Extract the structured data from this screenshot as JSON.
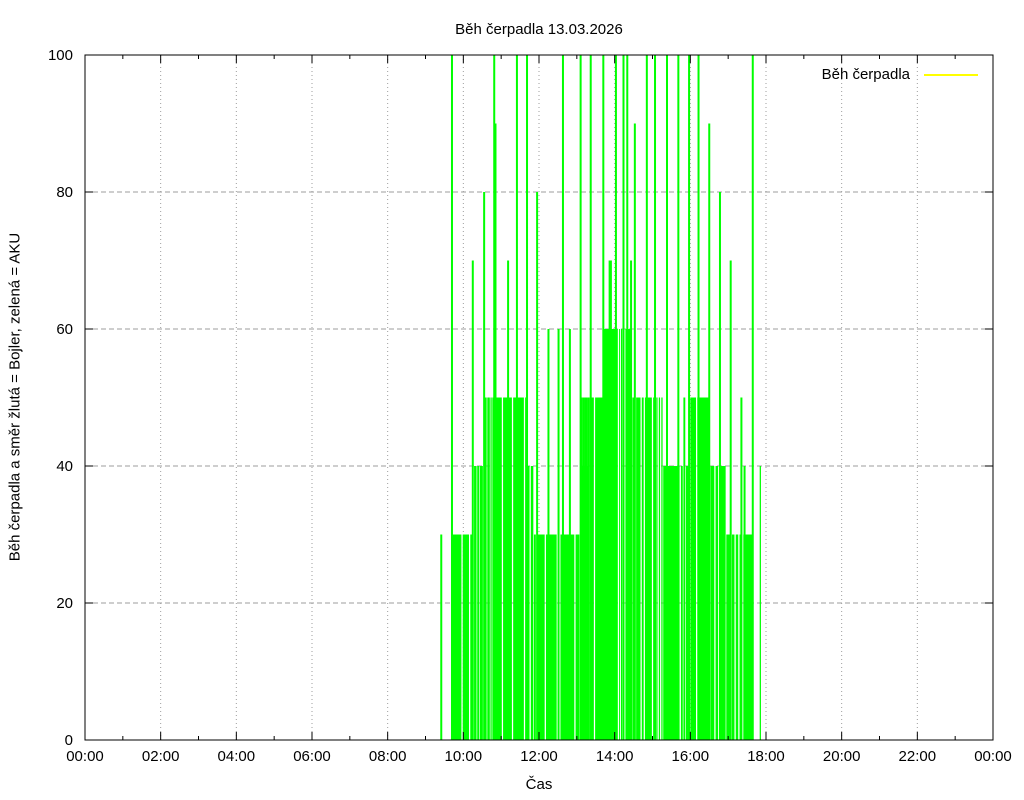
{
  "chart_data": {
    "type": "bar",
    "style": "impulses",
    "title": "Běh čerpadla 13.03.2026",
    "xlabel": "Čas",
    "ylabel": "Běh čerpadla a směr žlutá = Bojler, zelená = AKU",
    "ylim": [
      0,
      100
    ],
    "x_range_hours": 24,
    "x_ticks": [
      "00:00",
      "02:00",
      "04:00",
      "06:00",
      "08:00",
      "10:00",
      "12:00",
      "14:00",
      "16:00",
      "18:00",
      "20:00",
      "22:00",
      "00:00"
    ],
    "y_ticks": [
      0,
      20,
      40,
      60,
      80,
      100
    ],
    "grid": true,
    "colors": {
      "bars": "#00ff00",
      "legend_line": "#ffff00",
      "grid": "#9e9e9e",
      "axis": "#000000",
      "background": "#ffffff"
    },
    "legend": [
      {
        "label": "Běh čerpadla",
        "color": "#ffff00"
      }
    ],
    "series": [
      {
        "name": "Běh čerpadla",
        "color": "#00ff00",
        "segments": [
          {
            "s": "09:41",
            "e": "09:57",
            "v": 30
          },
          {
            "s": "09:59",
            "e": "10:09",
            "v": 30
          },
          {
            "s": "10:11",
            "e": "10:14",
            "v": 30
          },
          {
            "s": "10:17",
            "e": "10:21",
            "v": 40
          },
          {
            "s": "10:22",
            "e": "10:25",
            "v": 40
          },
          {
            "s": "10:26",
            "e": "10:31",
            "v": 40
          },
          {
            "s": "10:32",
            "e": "10:37",
            "v": 50
          },
          {
            "s": "10:38",
            "e": "10:42",
            "v": 50
          },
          {
            "s": "10:43",
            "e": "10:45",
            "v": 50
          },
          {
            "s": "10:46",
            "e": "11:01",
            "v": 50
          },
          {
            "s": "11:03",
            "e": "11:17",
            "v": 50
          },
          {
            "s": "11:19",
            "e": "11:36",
            "v": 50
          },
          {
            "s": "11:38",
            "e": "11:39",
            "v": 50
          },
          {
            "s": "11:40",
            "e": "11:45",
            "v": 40
          },
          {
            "s": "11:47",
            "e": "11:51",
            "v": 40
          },
          {
            "s": "11:52",
            "e": "11:55",
            "v": 30
          },
          {
            "s": "11:57",
            "e": "12:09",
            "v": 30
          },
          {
            "s": "12:11",
            "e": "12:28",
            "v": 30
          },
          {
            "s": "12:34",
            "e": "12:48",
            "v": 30
          },
          {
            "s": "12:50",
            "e": "12:56",
            "v": 30
          },
          {
            "s": "12:58",
            "e": "13:04",
            "v": 30
          },
          {
            "s": "13:05",
            "e": "13:20",
            "v": 40
          },
          {
            "s": "13:21",
            "e": "13:27",
            "v": 50
          },
          {
            "s": "13:29",
            "e": "13:42",
            "v": 50
          },
          {
            "s": "13:43",
            "e": "14:05",
            "v": 60
          },
          {
            "s": "14:07",
            "e": "14:08",
            "v": 60
          },
          {
            "s": "14:10",
            "e": "14:12",
            "v": 60
          },
          {
            "s": "14:14",
            "e": "14:15",
            "v": 60
          },
          {
            "s": "14:17",
            "e": "14:26",
            "v": 60
          },
          {
            "s": "14:28",
            "e": "14:32",
            "v": 50
          },
          {
            "s": "14:34",
            "e": "14:41",
            "v": 50
          },
          {
            "s": "14:43",
            "e": "14:46",
            "v": 50
          },
          {
            "s": "14:48",
            "e": "14:59",
            "v": 50
          },
          {
            "s": "15:01",
            "e": "15:04",
            "v": 50
          },
          {
            "s": "15:06",
            "e": "15:08",
            "v": 50
          },
          {
            "s": "15:10",
            "e": "15:12",
            "v": 50
          },
          {
            "s": "15:14",
            "e": "15:16",
            "v": 50
          },
          {
            "s": "15:17",
            "e": "15:43",
            "v": 40
          },
          {
            "s": "15:45",
            "e": "15:48",
            "v": 40
          },
          {
            "s": "15:49",
            "e": "15:52",
            "v": 50
          },
          {
            "s": "15:53",
            "e": "15:59",
            "v": 40
          },
          {
            "s": "16:00",
            "e": "16:09",
            "v": 50
          },
          {
            "s": "16:11",
            "e": "16:31",
            "v": 50
          },
          {
            "s": "16:32",
            "e": "16:38",
            "v": 40
          },
          {
            "s": "16:40",
            "e": "16:44",
            "v": 40
          },
          {
            "s": "16:46",
            "e": "16:56",
            "v": 40
          },
          {
            "s": "16:57",
            "e": "17:04",
            "v": 30
          },
          {
            "s": "17:06",
            "e": "17:10",
            "v": 30
          },
          {
            "s": "17:12",
            "e": "17:16",
            "v": 30
          },
          {
            "s": "17:18",
            "e": "17:22",
            "v": 30
          },
          {
            "s": "17:24",
            "e": "17:39",
            "v": 30
          },
          {
            "s": "17:50",
            "e": "17:52",
            "v": 40
          }
        ],
        "spikes": [
          {
            "t": "09:25",
            "v": 30
          },
          {
            "t": "09:42",
            "v": 100
          },
          {
            "t": "10:15",
            "v": 70
          },
          {
            "t": "10:33",
            "v": 80
          },
          {
            "t": "10:49",
            "v": 100
          },
          {
            "t": "10:51",
            "v": 90
          },
          {
            "t": "11:11",
            "v": 70
          },
          {
            "t": "11:25",
            "v": 100
          },
          {
            "t": "11:41",
            "v": 100
          },
          {
            "t": "11:57",
            "v": 80
          },
          {
            "t": "12:15",
            "v": 60
          },
          {
            "t": "12:31",
            "v": 60
          },
          {
            "t": "12:38",
            "v": 100
          },
          {
            "t": "12:49",
            "v": 60
          },
          {
            "t": "13:06",
            "v": 100
          },
          {
            "t": "13:07",
            "v": 50
          },
          {
            "t": "13:10",
            "v": 50
          },
          {
            "t": "13:13",
            "v": 50
          },
          {
            "t": "13:16",
            "v": 50
          },
          {
            "t": "13:19",
            "v": 50
          },
          {
            "t": "13:22",
            "v": 100
          },
          {
            "t": "13:42",
            "v": 100
          },
          {
            "t": "13:52",
            "v": 70
          },
          {
            "t": "13:54",
            "v": 70
          },
          {
            "t": "14:02",
            "v": 100
          },
          {
            "t": "14:14",
            "v": 100
          },
          {
            "t": "14:20",
            "v": 100
          },
          {
            "t": "14:26",
            "v": 70
          },
          {
            "t": "14:32",
            "v": 90
          },
          {
            "t": "14:51",
            "v": 100
          },
          {
            "t": "15:04",
            "v": 100
          },
          {
            "t": "15:23",
            "v": 100
          },
          {
            "t": "15:41",
            "v": 100
          },
          {
            "t": "15:58",
            "v": 100
          },
          {
            "t": "16:13",
            "v": 100
          },
          {
            "t": "16:30",
            "v": 90
          },
          {
            "t": "16:47",
            "v": 80
          },
          {
            "t": "17:04",
            "v": 70
          },
          {
            "t": "17:21",
            "v": 50
          },
          {
            "t": "17:26",
            "v": 40
          },
          {
            "t": "17:39",
            "v": 100
          }
        ]
      }
    ]
  }
}
